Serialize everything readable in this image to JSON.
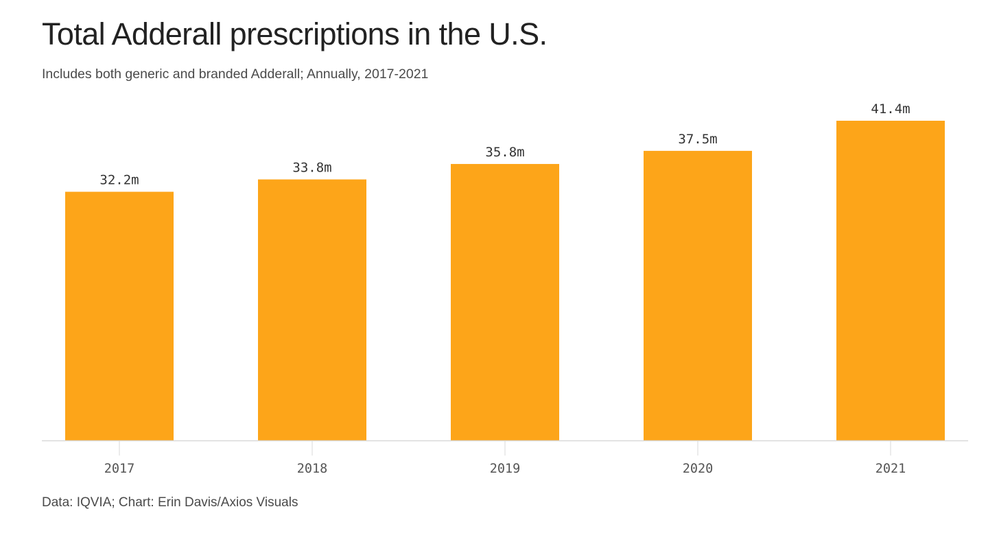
{
  "title": "Total Adderall prescriptions in the U.S.",
  "subtitle": "Includes both generic and branded Adderall; Annually, 2017-2021",
  "source": "Data: IQVIA; Chart: Erin Davis/Axios Visuals",
  "colors": {
    "bar": "#FDA519",
    "axis": "#d9d9d9",
    "title": "#222222",
    "text": "#4a4a4a"
  },
  "chart_data": {
    "type": "bar",
    "title": "Total Adderall prescriptions in the U.S.",
    "subtitle": "Includes both generic and branded Adderall; Annually, 2017-2021",
    "categories": [
      "2017",
      "2018",
      "2019",
      "2020",
      "2021"
    ],
    "values": [
      32.2,
      33.8,
      35.8,
      37.5,
      41.4
    ],
    "value_labels": [
      "32.2m",
      "33.8m",
      "35.8m",
      "37.5m",
      "41.4m"
    ],
    "unit": "m",
    "xlabel": "",
    "ylabel": "",
    "ylim": [
      0,
      41.4
    ],
    "grid": false,
    "legend": "none"
  }
}
